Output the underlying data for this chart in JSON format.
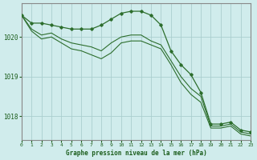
{
  "background_color": "#d0ecec",
  "grid_color": "#aacfcf",
  "line_color": "#2d6e2d",
  "marker_color": "#2d6e2d",
  "xlabel": "Graphe pression niveau de la mer (hPa)",
  "xlabel_color": "#1a5c1a",
  "ylabel_color": "#1a5c1a",
  "xlim": [
    0,
    23
  ],
  "ylim": [
    1017.4,
    1020.85
  ],
  "yticks": [
    1018,
    1019,
    1020
  ],
  "xticks": [
    0,
    1,
    2,
    3,
    4,
    5,
    6,
    7,
    8,
    9,
    10,
    11,
    12,
    13,
    14,
    15,
    16,
    17,
    18,
    19,
    20,
    21,
    22,
    23
  ],
  "series": [
    {
      "x": [
        0,
        1,
        2,
        3,
        4,
        5,
        6,
        7,
        8,
        9,
        10,
        11,
        12,
        13,
        14,
        15,
        16,
        17,
        18,
        19,
        20,
        21,
        22,
        23
      ],
      "y": [
        1020.55,
        1020.35,
        1020.35,
        1020.3,
        1020.25,
        1020.2,
        1020.2,
        1020.2,
        1020.3,
        1020.45,
        1020.6,
        1020.65,
        1020.65,
        1020.55,
        1020.3,
        1019.65,
        1019.3,
        1019.05,
        1018.6,
        1017.8,
        1017.8,
        1017.85,
        1017.65,
        1017.6
      ],
      "marker": true
    },
    {
      "x": [
        0,
        1,
        2,
        3,
        4,
        5,
        6,
        7,
        8,
        9,
        10,
        11,
        12,
        13,
        14,
        15,
        16,
        17,
        18,
        19,
        20,
        21,
        22,
        23
      ],
      "y": [
        1020.55,
        1020.2,
        1020.05,
        1020.1,
        1019.95,
        1019.85,
        1019.8,
        1019.75,
        1019.65,
        1019.85,
        1020.0,
        1020.05,
        1020.05,
        1019.9,
        1019.8,
        1019.4,
        1019.0,
        1018.7,
        1018.5,
        1017.75,
        1017.75,
        1017.8,
        1017.6,
        1017.55
      ],
      "marker": false
    },
    {
      "x": [
        0,
        1,
        2,
        3,
        4,
        5,
        6,
        7,
        8,
        9,
        10,
        11,
        12,
        13,
        14,
        15,
        16,
        17,
        18,
        19,
        20,
        21,
        22,
        23
      ],
      "y": [
        1020.55,
        1020.15,
        1019.95,
        1020.0,
        1019.85,
        1019.7,
        1019.65,
        1019.55,
        1019.45,
        1019.6,
        1019.85,
        1019.9,
        1019.9,
        1019.8,
        1019.7,
        1019.3,
        1018.85,
        1018.55,
        1018.35,
        1017.7,
        1017.7,
        1017.75,
        1017.55,
        1017.5
      ],
      "marker": false
    }
  ]
}
